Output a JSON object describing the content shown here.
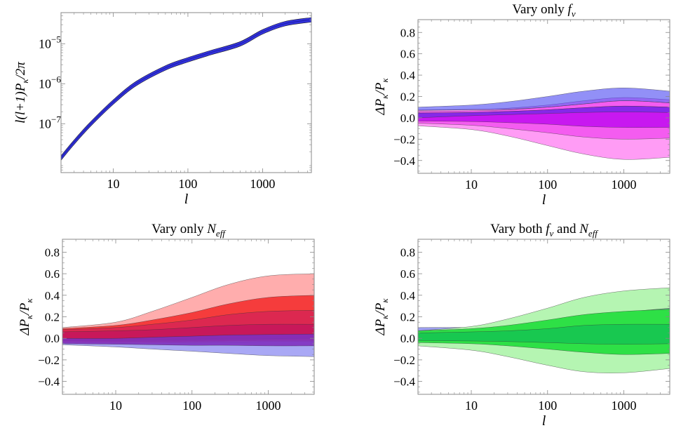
{
  "figure": {
    "background": "#ffffff",
    "frame_color": "#888888"
  },
  "chart_data": [
    {
      "id": "spectrum",
      "type": "area",
      "title": "",
      "xlabel": "l",
      "ylabel": "l(l+1)P_κ/2π",
      "xscale": "log",
      "yscale": "log",
      "xlim": [
        2,
        4500
      ],
      "ylim": [
        6e-09,
        6e-05
      ],
      "xticks": [
        {
          "value": 10,
          "label": "10"
        },
        {
          "value": 100,
          "label": "100"
        },
        {
          "value": 1000,
          "label": "1000"
        }
      ],
      "yticks": [
        {
          "value": 1e-07,
          "mantissa": "10",
          "exp": "−7"
        },
        {
          "value": 1e-06,
          "mantissa": "10",
          "exp": "−6"
        },
        {
          "value": 1e-05,
          "mantissa": "10",
          "exp": "−5"
        }
      ],
      "series": [
        {
          "color": "#3333dd",
          "x": [
            2,
            3,
            5,
            10,
            20,
            50,
            100,
            200,
            500,
            1000,
            2000,
            4500
          ],
          "y": [
            1.4e-08,
            3.5e-08,
            1e-07,
            3.5e-07,
            1e-06,
            2.5e-06,
            4e-06,
            6e-06,
            1e-05,
            2e-05,
            3.2e-05,
            4e-05
          ],
          "rel_width": 0.13
        }
      ]
    },
    {
      "id": "vary-fnu",
      "type": "area",
      "title": {
        "prefix": "Vary only ",
        "sym": "f",
        "sub": "ν",
        "mid": "",
        "sym2": "",
        "sub2": ""
      },
      "xlabel": "l",
      "ylabel": "ΔP_κ/P_κ",
      "xscale": "log",
      "xlim": [
        2,
        4000
      ],
      "ylim": [
        -0.52,
        0.92
      ],
      "xticks": [
        {
          "value": 10,
          "label": "10"
        },
        {
          "value": 100,
          "label": "100"
        },
        {
          "value": 1000,
          "label": "1000"
        }
      ],
      "yticks": [
        {
          "value": -0.4,
          "label": "−0.4"
        },
        {
          "value": -0.2,
          "label": "−0.2"
        },
        {
          "value": 0.0,
          "label": "0.0"
        },
        {
          "value": 0.2,
          "label": "0.2"
        },
        {
          "value": 0.4,
          "label": "0.4"
        },
        {
          "value": 0.6,
          "label": "0.6"
        },
        {
          "value": 0.8,
          "label": "0.8"
        }
      ],
      "bands": [
        {
          "color": "#ff9cf5",
          "x": [
            2,
            10,
            30,
            100,
            300,
            1000,
            4000
          ],
          "upper": [
            0.075,
            0.08,
            0.09,
            0.12,
            0.16,
            0.19,
            0.17
          ],
          "lower": [
            -0.075,
            -0.11,
            -0.17,
            -0.26,
            -0.34,
            -0.39,
            -0.37
          ]
        },
        {
          "color": "#f45cf0",
          "x": [
            2,
            10,
            30,
            100,
            300,
            1000,
            4000
          ],
          "upper": [
            0.06,
            0.065,
            0.075,
            0.1,
            0.13,
            0.16,
            0.14
          ],
          "lower": [
            -0.05,
            -0.07,
            -0.1,
            -0.14,
            -0.18,
            -0.2,
            -0.19
          ]
        },
        {
          "color": "#c818f0",
          "x": [
            2,
            10,
            30,
            100,
            300,
            1000,
            4000
          ],
          "upper": [
            0.045,
            0.05,
            0.06,
            0.075,
            0.095,
            0.11,
            0.1
          ],
          "lower": [
            -0.03,
            -0.035,
            -0.045,
            -0.06,
            -0.08,
            -0.09,
            -0.09
          ]
        },
        {
          "color": "#4a46f2",
          "x": [
            2,
            10,
            30,
            100,
            300,
            1000,
            4000
          ],
          "upper": [
            0.1,
            0.12,
            0.15,
            0.2,
            0.25,
            0.28,
            0.25
          ],
          "lower": [
            0.07,
            0.075,
            0.08,
            0.1,
            0.13,
            0.16,
            0.14
          ],
          "opacity": 0.6
        },
        {
          "color": "#7a2ce8",
          "x": [
            2,
            10,
            30,
            100,
            300,
            1000,
            4000
          ],
          "upper": [
            0.045,
            0.05,
            0.06,
            0.075,
            0.095,
            0.11,
            0.1
          ],
          "lower": [
            0.0,
            0.02,
            0.03,
            0.04,
            0.05,
            0.055,
            0.05
          ],
          "opacity": 0.85
        }
      ]
    },
    {
      "id": "vary-neff",
      "type": "area",
      "title": {
        "prefix": "Vary only ",
        "sym": "N",
        "sub": "eff",
        "mid": "",
        "sym2": "",
        "sub2": ""
      },
      "xlabel": "",
      "ylabel": "ΔP_κ/P_κ",
      "xscale": "log",
      "xlim": [
        2,
        4000
      ],
      "ylim": [
        -0.52,
        0.92
      ],
      "xticks": [
        {
          "value": 10,
          "label": "10"
        },
        {
          "value": 100,
          "label": "100"
        },
        {
          "value": 1000,
          "label": "1000"
        }
      ],
      "yticks": [
        {
          "value": -0.4,
          "label": "−0.4"
        },
        {
          "value": -0.2,
          "label": "−0.2"
        },
        {
          "value": 0.0,
          "label": "0.0"
        },
        {
          "value": 0.2,
          "label": "0.2"
        },
        {
          "value": 0.4,
          "label": "0.4"
        },
        {
          "value": 0.6,
          "label": "0.6"
        },
        {
          "value": 0.8,
          "label": "0.8"
        }
      ],
      "bands": [
        {
          "color": "#a9a8f5",
          "x": [
            2,
            10,
            30,
            100,
            300,
            1000,
            4000
          ],
          "upper": [
            0.05,
            0.05,
            0.04,
            0.03,
            0.02,
            0.02,
            0.02
          ],
          "lower": [
            -0.06,
            -0.08,
            -0.1,
            -0.12,
            -0.14,
            -0.16,
            -0.17
          ]
        },
        {
          "color": "#ffadad",
          "x": [
            2,
            10,
            30,
            100,
            300,
            1000,
            4000
          ],
          "upper": [
            0.1,
            0.15,
            0.25,
            0.38,
            0.5,
            0.58,
            0.6
          ],
          "lower": [
            -0.04,
            -0.045,
            -0.045,
            -0.04,
            -0.035,
            -0.03,
            -0.03
          ]
        },
        {
          "color": "#f53c3c",
          "x": [
            2,
            10,
            30,
            100,
            300,
            1000,
            4000
          ],
          "upper": [
            0.09,
            0.12,
            0.17,
            0.24,
            0.32,
            0.38,
            0.4
          ],
          "lower": [
            -0.03,
            -0.035,
            -0.035,
            -0.03,
            -0.025,
            -0.02,
            -0.02
          ]
        },
        {
          "color": "#dc2850",
          "x": [
            2,
            10,
            30,
            100,
            300,
            1000,
            4000
          ],
          "upper": [
            0.08,
            0.1,
            0.13,
            0.17,
            0.22,
            0.25,
            0.26
          ],
          "lower": [
            -0.02,
            -0.02,
            -0.02,
            -0.015,
            -0.01,
            -0.005,
            0.0
          ]
        },
        {
          "color": "#c8185a",
          "x": [
            2,
            10,
            30,
            100,
            300,
            1000,
            4000
          ],
          "upper": [
            0.06,
            0.07,
            0.08,
            0.1,
            0.12,
            0.13,
            0.13
          ],
          "lower": [
            -0.02,
            -0.015,
            -0.01,
            -0.005,
            0.0,
            0.0,
            0.0
          ]
        },
        {
          "color": "#8030c0",
          "x": [
            2,
            10,
            30,
            100,
            300,
            1000,
            4000
          ],
          "upper": [
            0.0,
            0.0,
            0.01,
            0.02,
            0.03,
            0.035,
            0.04
          ],
          "lower": [
            -0.05,
            -0.055,
            -0.06,
            -0.065,
            -0.065,
            -0.07,
            -0.07
          ],
          "opacity": 0.9
        }
      ]
    },
    {
      "id": "vary-both",
      "type": "area",
      "title": {
        "prefix": "Vary both ",
        "sym": "f",
        "sub": "ν",
        "mid": " and ",
        "sym2": "N",
        "sub2": "eff"
      },
      "xlabel": "l",
      "ylabel": "ΔP_κ/P_κ",
      "xscale": "log",
      "xlim": [
        2,
        4000
      ],
      "ylim": [
        -0.52,
        0.92
      ],
      "xticks": [
        {
          "value": 10,
          "label": "10"
        },
        {
          "value": 100,
          "label": "100"
        },
        {
          "value": 1000,
          "label": "1000"
        }
      ],
      "yticks": [
        {
          "value": -0.4,
          "label": "−0.4"
        },
        {
          "value": -0.2,
          "label": "−0.2"
        },
        {
          "value": 0.0,
          "label": "0.0"
        },
        {
          "value": 0.2,
          "label": "0.2"
        },
        {
          "value": 0.4,
          "label": "0.4"
        },
        {
          "value": 0.6,
          "label": "0.6"
        },
        {
          "value": 0.8,
          "label": "0.8"
        }
      ],
      "bands": [
        {
          "color": "#4a50e0",
          "x": [
            2,
            10,
            30,
            100,
            300,
            1000,
            4000
          ],
          "upper": [
            0.1,
            0.1,
            0.09,
            0.08,
            0.07,
            0.06,
            0.05
          ],
          "lower": [
            -0.03,
            -0.04,
            -0.05,
            -0.07,
            -0.09,
            -0.12,
            -0.18
          ],
          "opacity": 0.55
        },
        {
          "color": "#b5f5b2",
          "x": [
            2,
            10,
            30,
            100,
            300,
            1000,
            4000
          ],
          "upper": [
            0.07,
            0.11,
            0.18,
            0.28,
            0.38,
            0.44,
            0.47
          ],
          "lower": [
            -0.07,
            -0.11,
            -0.17,
            -0.25,
            -0.31,
            -0.32,
            -0.28
          ]
        },
        {
          "color": "#509a7e",
          "x": [
            2,
            10,
            30,
            100,
            300,
            1000,
            4000
          ],
          "upper": [
            0.06,
            0.07,
            0.09,
            0.13,
            0.18,
            0.24,
            0.28
          ],
          "lower": [
            0.03,
            0.03,
            0.03,
            0.035,
            0.04,
            0.05,
            0.05
          ],
          "opacity": 0.75
        },
        {
          "color": "#2ee046",
          "x": [
            2,
            10,
            30,
            100,
            300,
            1000,
            4000
          ],
          "upper": [
            0.07,
            0.09,
            0.12,
            0.17,
            0.22,
            0.25,
            0.27
          ],
          "lower": [
            -0.04,
            -0.05,
            -0.07,
            -0.1,
            -0.13,
            -0.15,
            -0.14
          ]
        },
        {
          "color": "#18c850",
          "x": [
            2,
            10,
            30,
            100,
            300,
            1000,
            4000
          ],
          "upper": [
            0.05,
            0.06,
            0.07,
            0.09,
            0.12,
            0.13,
            0.13
          ],
          "lower": [
            -0.02,
            -0.025,
            -0.03,
            -0.04,
            -0.05,
            -0.055,
            -0.05
          ]
        }
      ]
    }
  ]
}
